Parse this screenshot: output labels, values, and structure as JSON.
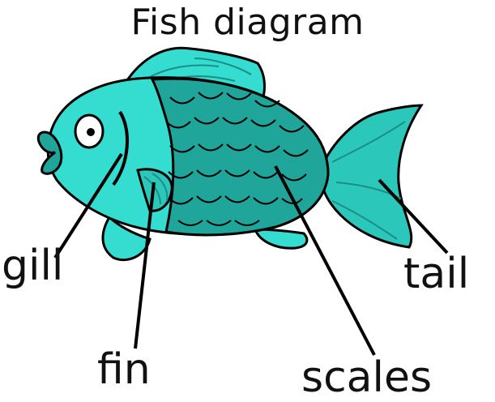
{
  "diagram": {
    "title": "Fish diagram",
    "labels": {
      "gill": "gill",
      "fin": "fin",
      "scales": "scales",
      "tail": "tail"
    }
  },
  "colors": {
    "body_light": "#35dcd0",
    "body_mid": "#2bc7bb",
    "scales_dark": "#1fa59a",
    "outline": "#000000",
    "eye_white": "#ffffff"
  }
}
